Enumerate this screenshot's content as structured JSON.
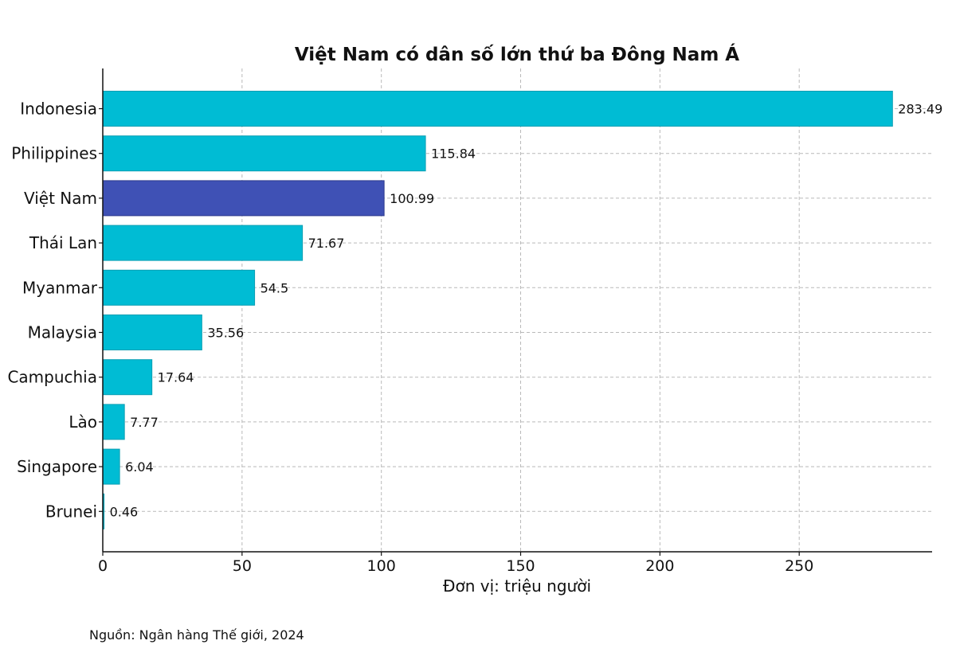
{
  "chart_data": {
    "type": "bar",
    "orientation": "horizontal",
    "title": "Việt Nam có dân số lớn thứ ba Đông Nam Á",
    "xlabel": "Đơn vị: triệu người",
    "ylabel": "",
    "xlim": [
      0,
      297.7
    ],
    "xticks": [
      0,
      50,
      100,
      150,
      200,
      250
    ],
    "grid": true,
    "categories": [
      "Indonesia",
      "Philippines",
      "Việt Nam",
      "Thái Lan",
      "Myanmar",
      "Malaysia",
      "Campuchia",
      "Lào",
      "Singapore",
      "Brunei"
    ],
    "values": [
      283.49,
      115.84,
      100.99,
      71.67,
      54.5,
      35.56,
      17.64,
      7.77,
      6.04,
      0.46
    ],
    "value_labels": [
      "283.49",
      "115.84",
      "100.99",
      "71.67",
      "54.5",
      "35.56",
      "17.64",
      "7.77",
      "6.04",
      "0.46"
    ],
    "colors": [
      "#00bcd4",
      "#00bcd4",
      "#3f51b5",
      "#00bcd4",
      "#00bcd4",
      "#00bcd4",
      "#00bcd4",
      "#00bcd4",
      "#00bcd4",
      "#00bcd4"
    ],
    "edge_color": "#0a9fb3",
    "highlight_edge_color": "#2c3a8c"
  },
  "source_note": "Nguồn: Ngân hàng Thế giới, 2024"
}
